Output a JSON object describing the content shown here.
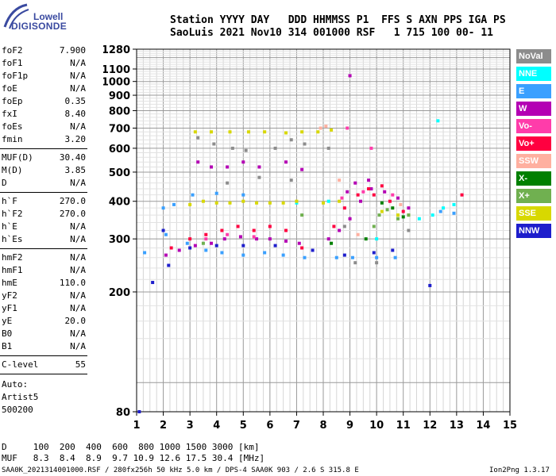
{
  "logo": {
    "line1": "Lowell",
    "line2": "DIGISONDE"
  },
  "header": {
    "row1": "Station YYYY DAY   DDD HHMMSS P1  FFS S AXN PPS IGA PS",
    "row2": "SaoLuis 2021 Nov10 314 001000 RSF   1 715 100 00- 11"
  },
  "parameters": {
    "group1": [
      {
        "name": "foF2",
        "value": "7.900"
      },
      {
        "name": "foF1",
        "value": "N/A"
      },
      {
        "name": "foF1p",
        "value": "N/A"
      },
      {
        "name": "foE",
        "value": "N/A"
      },
      {
        "name": "foEp",
        "value": "0.35"
      },
      {
        "name": "fxI",
        "value": "8.40"
      },
      {
        "name": "foEs",
        "value": "N/A"
      },
      {
        "name": "fmin",
        "value": "3.20"
      }
    ],
    "group2": [
      {
        "name": "MUF(D)",
        "value": "30.40"
      },
      {
        "name": "M(D)",
        "value": "3.85"
      },
      {
        "name": "D",
        "value": "N/A"
      }
    ],
    "group3": [
      {
        "name": "h`F",
        "value": "270.0"
      },
      {
        "name": "h`F2",
        "value": "270.0"
      },
      {
        "name": "h`E",
        "value": "N/A"
      },
      {
        "name": "h`Es",
        "value": "N/A"
      }
    ],
    "group4": [
      {
        "name": "hmF2",
        "value": "N/A"
      },
      {
        "name": "hmF1",
        "value": "N/A"
      },
      {
        "name": "hmE",
        "value": "110.0"
      },
      {
        "name": "yF2",
        "value": "N/A"
      },
      {
        "name": "yF1",
        "value": "N/A"
      },
      {
        "name": "yE",
        "value": "20.0"
      },
      {
        "name": "B0",
        "value": "N/A"
      },
      {
        "name": "B1",
        "value": "N/A"
      }
    ],
    "group5": [
      {
        "name": "C-level",
        "value": "55"
      }
    ],
    "notes": [
      "Auto:",
      "Artist5",
      "500200"
    ]
  },
  "legend": [
    {
      "label": "NoVal",
      "bg": "#8c8c8c",
      "fg": "#ffffff"
    },
    {
      "label": "NNE",
      "bg": "#00ffff",
      "fg": "#ffffff"
    },
    {
      "label": "E",
      "bg": "#3aa0ff",
      "fg": "#ffffff"
    },
    {
      "label": "W",
      "bg": "#b400b4",
      "fg": "#ffffff"
    },
    {
      "label": "Vo-",
      "bg": "#ff3caa",
      "fg": "#ffffff"
    },
    {
      "label": "Vo+",
      "bg": "#ff0040",
      "fg": "#ffffff"
    },
    {
      "label": "SSW",
      "bg": "#ffb0a0",
      "fg": "#ffffff"
    },
    {
      "label": "X-",
      "bg": "#008000",
      "fg": "#ffffff"
    },
    {
      "label": "X+",
      "bg": "#70b050",
      "fg": "#ffffff"
    },
    {
      "label": "SSE",
      "bg": "#d8d800",
      "fg": "#ffffff"
    },
    {
      "label": "NNW",
      "bg": "#1e1ecc",
      "fg": "#ffffff"
    }
  ],
  "footer": {
    "d_row": "D     100  200  400  600  800 1000 1500 3000 [km]",
    "muf_row": "MUF   8.3  8.4  8.9  9.7 10.9 12.6 17.5 30.4 [MHz]",
    "info": "SAA0K_2021314001000.RSF / 280fx256h 50 kHz 5.0 km / DPS-4 SAA0K 903 / 2.6 S 315.8 E",
    "version": "Ion2Png 1.3.17"
  },
  "chart_data": {
    "type": "scatter",
    "xlabel": "",
    "ylabel": "",
    "xlim": [
      1,
      15
    ],
    "ylim": [
      80,
      1280
    ],
    "x_ticks": [
      1,
      2,
      3,
      4,
      5,
      6,
      7,
      8,
      9,
      10,
      11,
      12,
      13,
      14,
      15
    ],
    "y_ticks": [
      80,
      200,
      300,
      400,
      500,
      600,
      700,
      800,
      900,
      1000,
      1100,
      1280
    ],
    "y_scale": "log",
    "grid": true,
    "series": [
      {
        "name": "W",
        "color": "#b400b4",
        "points": [
          [
            2.1,
            265
          ],
          [
            2.6,
            275
          ],
          [
            3.2,
            285
          ],
          [
            3.8,
            290
          ],
          [
            4.3,
            300
          ],
          [
            4.9,
            305
          ],
          [
            5.5,
            300
          ],
          [
            6.0,
            300
          ],
          [
            6.6,
            295
          ],
          [
            7.1,
            290
          ],
          [
            8.2,
            300
          ],
          [
            8.6,
            320
          ],
          [
            9.0,
            350
          ],
          [
            9.4,
            400
          ],
          [
            9.8,
            440
          ],
          [
            10.3,
            430
          ],
          [
            10.8,
            410
          ],
          [
            11.2,
            380
          ],
          [
            3.3,
            540
          ],
          [
            3.8,
            520
          ],
          [
            4.4,
            520
          ],
          [
            5.0,
            540
          ],
          [
            5.6,
            520
          ],
          [
            6.6,
            540
          ],
          [
            7.2,
            510
          ],
          [
            8.9,
            430
          ],
          [
            9.2,
            460
          ],
          [
            9.7,
            470
          ],
          [
            9.0,
            1045
          ]
        ]
      },
      {
        "name": "Vo+",
        "color": "#ff0040",
        "points": [
          [
            2.3,
            280
          ],
          [
            3.0,
            300
          ],
          [
            3.6,
            310
          ],
          [
            4.2,
            320
          ],
          [
            4.8,
            330
          ],
          [
            5.4,
            320
          ],
          [
            6.0,
            330
          ],
          [
            6.6,
            320
          ],
          [
            7.2,
            280
          ],
          [
            8.4,
            330
          ],
          [
            8.8,
            380
          ],
          [
            9.3,
            420
          ],
          [
            9.9,
            420
          ],
          [
            10.5,
            400
          ],
          [
            11.0,
            370
          ],
          [
            9.7,
            440
          ],
          [
            10.2,
            450
          ],
          [
            13.2,
            420
          ]
        ]
      },
      {
        "name": "E",
        "color": "#3aa0ff",
        "points": [
          [
            1.3,
            270
          ],
          [
            2.1,
            310
          ],
          [
            2.9,
            290
          ],
          [
            3.6,
            275
          ],
          [
            4.2,
            270
          ],
          [
            5.0,
            265
          ],
          [
            5.8,
            270
          ],
          [
            6.5,
            265
          ],
          [
            7.3,
            260
          ],
          [
            8.5,
            260
          ],
          [
            9.1,
            260
          ],
          [
            10.0,
            260
          ],
          [
            10.7,
            260
          ],
          [
            12.4,
            370
          ],
          [
            12.9,
            365
          ],
          [
            3.1,
            420
          ],
          [
            4.0,
            425
          ],
          [
            5.0,
            420
          ],
          [
            2.4,
            390
          ],
          [
            2.0,
            380
          ]
        ]
      },
      {
        "name": "NNE",
        "color": "#00ffff",
        "points": [
          [
            12.1,
            360
          ],
          [
            12.5,
            380
          ],
          [
            12.9,
            390
          ],
          [
            11.6,
            350
          ],
          [
            12.3,
            740
          ],
          [
            8.2,
            400
          ],
          [
            10.0,
            300
          ],
          [
            7.0,
            395
          ]
        ]
      },
      {
        "name": "SSE",
        "color": "#d8d800",
        "points": [
          [
            3.0,
            390
          ],
          [
            3.5,
            400
          ],
          [
            4.0,
            395
          ],
          [
            4.5,
            395
          ],
          [
            5.0,
            400
          ],
          [
            5.5,
            395
          ],
          [
            6.0,
            395
          ],
          [
            6.5,
            395
          ],
          [
            7.0,
            400
          ],
          [
            8.0,
            395
          ],
          [
            8.6,
            400
          ],
          [
            10.2,
            370
          ],
          [
            10.8,
            360
          ],
          [
            11.2,
            360
          ],
          [
            3.2,
            680
          ],
          [
            3.8,
            680
          ],
          [
            4.5,
            680
          ],
          [
            5.2,
            680
          ],
          [
            5.8,
            680
          ],
          [
            6.6,
            675
          ],
          [
            7.2,
            680
          ],
          [
            7.8,
            680
          ],
          [
            8.3,
            690
          ]
        ]
      },
      {
        "name": "X+",
        "color": "#70b050",
        "points": [
          [
            10.1,
            360
          ],
          [
            10.4,
            375
          ],
          [
            10.8,
            350
          ],
          [
            11.2,
            360
          ],
          [
            9.9,
            330
          ],
          [
            7.2,
            360
          ],
          [
            3.5,
            290
          ]
        ]
      },
      {
        "name": "X-",
        "color": "#008000",
        "points": [
          [
            10.2,
            395
          ],
          [
            10.6,
            380
          ],
          [
            11.0,
            355
          ],
          [
            9.6,
            300
          ],
          [
            8.3,
            290
          ]
        ]
      },
      {
        "name": "Vo-",
        "color": "#ff3caa",
        "points": [
          [
            3.6,
            300
          ],
          [
            4.4,
            310
          ],
          [
            5.4,
            305
          ],
          [
            8.7,
            410
          ],
          [
            9.5,
            430
          ],
          [
            10.6,
            420
          ],
          [
            8.9,
            700
          ],
          [
            9.8,
            600
          ]
        ]
      },
      {
        "name": "SSW",
        "color": "#ffb0a0",
        "points": [
          [
            7.9,
            700
          ],
          [
            8.1,
            710
          ],
          [
            8.6,
            470
          ],
          [
            9.3,
            310
          ],
          [
            10.9,
            390
          ]
        ]
      },
      {
        "name": "NNW",
        "color": "#1e1ecc",
        "points": [
          [
            2.0,
            320
          ],
          [
            3.0,
            280
          ],
          [
            4.0,
            285
          ],
          [
            5.0,
            285
          ],
          [
            6.2,
            285
          ],
          [
            7.6,
            275
          ],
          [
            8.8,
            265
          ],
          [
            9.9,
            270
          ],
          [
            10.6,
            275
          ],
          [
            1.6,
            215
          ],
          [
            2.2,
            245
          ],
          [
            12.0,
            210
          ],
          [
            1.1,
            80
          ]
        ]
      },
      {
        "name": "NoVal",
        "color": "#8c8c8c",
        "points": [
          [
            3.3,
            650
          ],
          [
            3.9,
            620
          ],
          [
            4.6,
            600
          ],
          [
            5.1,
            590
          ],
          [
            6.2,
            600
          ],
          [
            6.8,
            640
          ],
          [
            7.3,
            620
          ],
          [
            8.2,
            600
          ],
          [
            8.8,
            330
          ],
          [
            9.2,
            250
          ],
          [
            10.0,
            250
          ],
          [
            11.2,
            320
          ],
          [
            4.4,
            460
          ],
          [
            5.6,
            480
          ],
          [
            6.8,
            470
          ]
        ]
      }
    ]
  }
}
